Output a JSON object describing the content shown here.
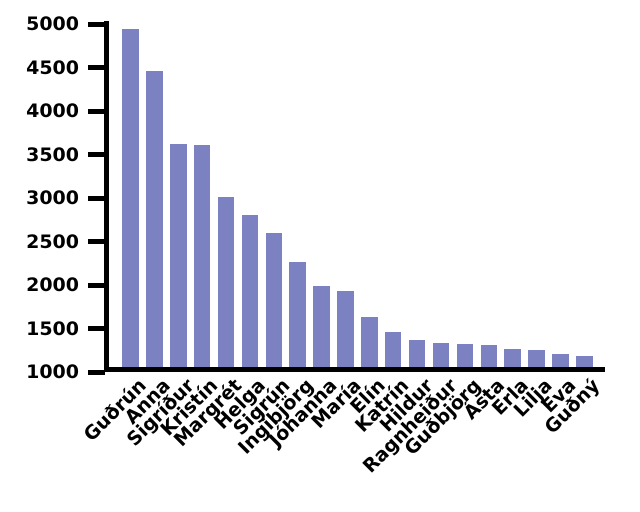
{
  "chart_data": {
    "type": "bar",
    "title": "",
    "xlabel": "",
    "ylabel": "",
    "categories": [
      "Guðrún",
      "Anna",
      "Sigríður",
      "Kristín",
      "Margrét",
      "Helga",
      "Sigrún",
      "Ingibjörg",
      "Jóhanna",
      "María",
      "Elín",
      "Katrín",
      "Hildur",
      "Ragnheiður",
      "Guðbjörg",
      "Ásta",
      "Erla",
      "Lilja",
      "Eva",
      "Guðný"
    ],
    "values": [
      4940,
      4460,
      3620,
      3610,
      3010,
      2810,
      2600,
      2260,
      1990,
      1930,
      1630,
      1460,
      1370,
      1330,
      1320,
      1310,
      1260,
      1250,
      1210,
      1180
    ],
    "yticks": [
      5000,
      4500,
      4000,
      3500,
      3000,
      2500,
      2000,
      1500,
      1000
    ],
    "yticklabels": [
      "5000",
      "4500",
      "4000",
      "3500",
      "3000",
      "2500",
      "2000",
      "1500",
      "1000"
    ],
    "ylim": [
      1000,
      5000
    ],
    "grid": false,
    "legend": "none",
    "x_tick_label_rotation_deg": 45,
    "bar_color": "#7b81c1",
    "axis_color": "#000000",
    "background_color": "#ffffff"
  }
}
